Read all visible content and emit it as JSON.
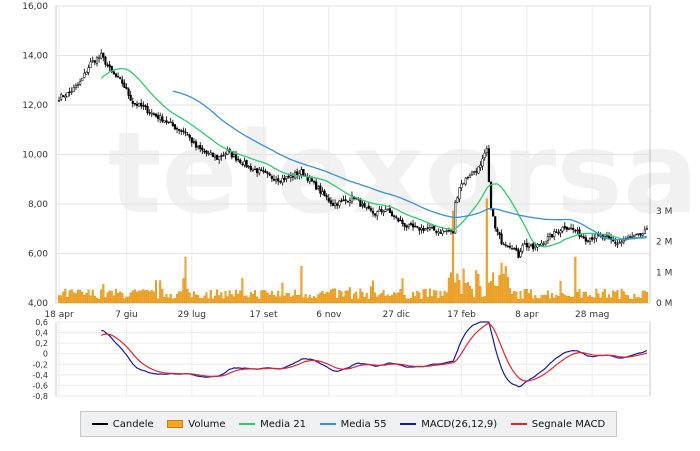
{
  "chart_data": [
    {
      "type": "candlestick+bar+line",
      "title": "",
      "x_tick_labels": [
        "18 apr",
        "7 giu",
        "29 lug",
        "17 set",
        "6 nov",
        "27 dic",
        "17 feb",
        "8 apr",
        "28 mag"
      ],
      "price_axis": {
        "ylim": [
          4.0,
          16.0
        ],
        "ticks": [
          "4,00",
          "6,00",
          "8,00",
          "10,00",
          "12,00",
          "14,00",
          "16,00"
        ]
      },
      "volume_axis": {
        "ylim": [
          0,
          3
        ],
        "unit": "M",
        "ticks": [
          "0 M",
          "1 M",
          "2 M",
          "3 M"
        ]
      },
      "watermark": "telexorsa",
      "close_anchors": [
        [
          0,
          12.3
        ],
        [
          5,
          12.5
        ],
        [
          10,
          12.9
        ],
        [
          15,
          13.7
        ],
        [
          20,
          14.0
        ],
        [
          25,
          13.3
        ],
        [
          30,
          12.9
        ],
        [
          35,
          12.1
        ],
        [
          40,
          11.9
        ],
        [
          45,
          11.6
        ],
        [
          50,
          11.4
        ],
        [
          55,
          11.1
        ],
        [
          60,
          10.9
        ],
        [
          65,
          10.3
        ],
        [
          70,
          10.05
        ],
        [
          75,
          9.85
        ],
        [
          80,
          10.1
        ],
        [
          85,
          9.8
        ],
        [
          90,
          9.5
        ],
        [
          95,
          9.3
        ],
        [
          100,
          9.1
        ],
        [
          105,
          9.0
        ],
        [
          110,
          9.1
        ],
        [
          115,
          9.3
        ],
        [
          120,
          8.9
        ],
        [
          125,
          8.4
        ],
        [
          130,
          8.0
        ],
        [
          135,
          8.1
        ],
        [
          140,
          8.3
        ],
        [
          145,
          7.8
        ],
        [
          150,
          7.6
        ],
        [
          155,
          7.8
        ],
        [
          160,
          7.4
        ],
        [
          165,
          7.1
        ],
        [
          170,
          7.0
        ],
        [
          175,
          7.0
        ],
        [
          180,
          6.9
        ],
        [
          185,
          6.9
        ],
        [
          187,
          6.85
        ],
        [
          188,
          8.0
        ],
        [
          190,
          8.7
        ],
        [
          195,
          9.2
        ],
        [
          200,
          9.5
        ],
        [
          203,
          10.2
        ],
        [
          204,
          8.8
        ],
        [
          205,
          7.9
        ],
        [
          207,
          7.0
        ],
        [
          210,
          6.5
        ],
        [
          215,
          6.3
        ],
        [
          218,
          5.9
        ],
        [
          220,
          6.4
        ],
        [
          225,
          6.2
        ],
        [
          230,
          6.5
        ],
        [
          235,
          6.8
        ],
        [
          240,
          7.1
        ],
        [
          243,
          7.0
        ],
        [
          245,
          6.9
        ],
        [
          250,
          6.6
        ],
        [
          255,
          6.7
        ],
        [
          260,
          6.6
        ],
        [
          265,
          6.4
        ],
        [
          270,
          6.6
        ],
        [
          275,
          6.7
        ],
        [
          279,
          6.9
        ]
      ],
      "series": [
        {
          "name": "Candele",
          "color": "#000000",
          "kind": "candles"
        },
        {
          "name": "Volume",
          "color": "#f5a623",
          "kind": "bars",
          "spikes": [
            [
              60,
              1.5
            ],
            [
              115,
              1.2
            ],
            [
              187,
              3.0
            ],
            [
              203,
              3.4
            ],
            [
              210,
              1.3
            ],
            [
              245,
              1.5
            ]
          ]
        },
        {
          "name": "Media 21",
          "color": "#2ecc71",
          "kind": "line",
          "window": 21
        },
        {
          "name": "Media 55",
          "color": "#3b8fd6",
          "kind": "line",
          "window": 55
        },
        {
          "name": "MACD(26,12,9)",
          "color": "#1a1aa0",
          "kind": "line"
        },
        {
          "name": "Segnale MACD",
          "color": "#e0282e",
          "kind": "line"
        }
      ],
      "macd_axis": {
        "ylim": [
          -0.8,
          0.6
        ],
        "ticks": [
          "0,6",
          "0,4",
          "0,2",
          "0",
          "-0,2",
          "-0,4",
          "-0,6",
          "-0,8"
        ]
      },
      "n_sessions": 280
    }
  ],
  "legend": {
    "items": [
      {
        "label": "Candele",
        "color": "#000000",
        "style": "line"
      },
      {
        "label": "Volume",
        "color": "#f5a623",
        "style": "box"
      },
      {
        "label": "Media 21",
        "color": "#2ecc71",
        "style": "line"
      },
      {
        "label": "Media 55",
        "color": "#3b8fd6",
        "style": "line"
      },
      {
        "label": "MACD(26,12,9)",
        "color": "#1a1aa0",
        "style": "line"
      },
      {
        "label": "Segnale MACD",
        "color": "#e0282e",
        "style": "line"
      }
    ]
  }
}
